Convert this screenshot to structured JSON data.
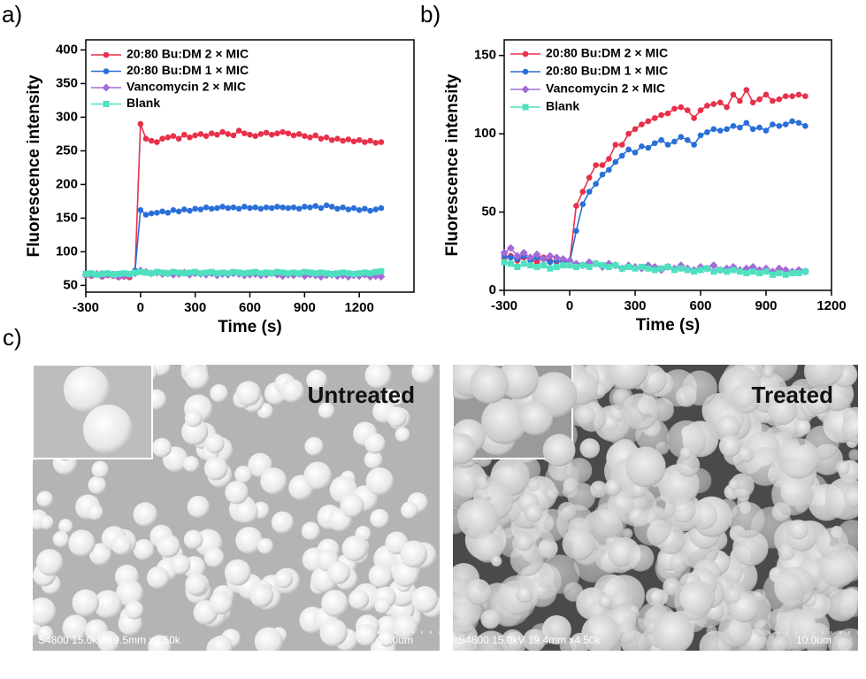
{
  "chart_data": [
    {
      "type": "line",
      "panel": "a)",
      "xlabel": "Time (s)",
      "ylabel": "Fluorescence intensity",
      "xlim": [
        -300,
        1500
      ],
      "xticks": [
        -300,
        0,
        300,
        600,
        900,
        1200
      ],
      "ylim": [
        40,
        415
      ],
      "yticks": [
        50,
        100,
        150,
        200,
        250,
        300,
        350,
        400
      ],
      "x": [
        -300,
        -270,
        -240,
        -210,
        -180,
        -150,
        -120,
        -90,
        -60,
        -30,
        0,
        30,
        60,
        90,
        120,
        150,
        180,
        210,
        240,
        270,
        300,
        330,
        360,
        390,
        420,
        450,
        480,
        510,
        540,
        570,
        600,
        630,
        660,
        690,
        720,
        750,
        780,
        810,
        840,
        870,
        900,
        930,
        960,
        990,
        1020,
        1050,
        1080,
        1110,
        1140,
        1170,
        1200,
        1230,
        1260,
        1290,
        1320
      ],
      "series": [
        {
          "name": "20:80 Bu:DM 2 × MIC",
          "color": "#e8304a",
          "marker": "circle",
          "values": [
            65,
            64,
            66,
            63,
            65,
            64,
            62,
            63,
            62,
            70,
            290,
            268,
            265,
            263,
            268,
            270,
            272,
            268,
            274,
            270,
            273,
            275,
            272,
            276,
            274,
            278,
            275,
            273,
            280,
            276,
            274,
            272,
            275,
            277,
            274,
            276,
            278,
            276,
            273,
            275,
            272,
            270,
            273,
            268,
            270,
            266,
            268,
            265,
            267,
            264,
            266,
            263,
            265,
            262,
            263
          ]
        },
        {
          "name": "20:80 Bu:DM 1 × MIC",
          "color": "#2a6fd8",
          "marker": "circle",
          "values": [
            68,
            67,
            66,
            68,
            66,
            67,
            65,
            66,
            66,
            72,
            162,
            155,
            157,
            158,
            160,
            158,
            162,
            160,
            163,
            161,
            164,
            163,
            166,
            164,
            165,
            167,
            165,
            166,
            164,
            167,
            165,
            166,
            164,
            166,
            165,
            167,
            166,
            165,
            166,
            164,
            167,
            166,
            168,
            165,
            169,
            167,
            164,
            166,
            163,
            165,
            162,
            164,
            161,
            163,
            165
          ]
        },
        {
          "name": "Vancomycin  2 × MIC",
          "color": "#a56ad8",
          "marker": "diamond",
          "values": [
            66,
            65,
            67,
            64,
            66,
            65,
            63,
            64,
            65,
            68,
            72,
            70,
            68,
            69,
            67,
            68,
            66,
            67,
            69,
            66,
            68,
            67,
            66,
            68,
            65,
            67,
            66,
            68,
            67,
            65,
            66,
            67,
            65,
            66,
            68,
            66,
            64,
            66,
            65,
            67,
            64,
            66,
            65,
            63,
            65,
            66,
            64,
            65,
            63,
            65,
            64,
            66,
            63,
            64,
            63
          ]
        },
        {
          "name": "Blank",
          "color": "#4fe0c0",
          "marker": "square",
          "values": [
            67,
            68,
            66,
            67,
            68,
            66,
            67,
            68,
            67,
            69,
            70,
            69,
            68,
            70,
            69,
            68,
            70,
            69,
            68,
            69,
            70,
            68,
            69,
            70,
            68,
            69,
            68,
            70,
            69,
            68,
            69,
            70,
            68,
            69,
            68,
            70,
            69,
            68,
            69,
            68,
            70,
            69,
            68,
            69,
            68,
            67,
            68,
            69,
            68,
            67,
            68,
            69,
            68,
            70,
            71
          ]
        }
      ]
    },
    {
      "type": "line",
      "panel": "b)",
      "xlabel": "Time (s)",
      "ylabel": "Fluorescence intensity",
      "xlim": [
        -300,
        1200
      ],
      "xticks": [
        -300,
        0,
        300,
        600,
        900,
        1200
      ],
      "ylim": [
        0,
        160
      ],
      "yticks": [
        0,
        50,
        100,
        150
      ],
      "x": [
        -300,
        -270,
        -240,
        -210,
        -180,
        -150,
        -120,
        -90,
        -60,
        -30,
        0,
        30,
        60,
        90,
        120,
        150,
        180,
        210,
        240,
        270,
        300,
        330,
        360,
        390,
        420,
        450,
        480,
        510,
        540,
        570,
        600,
        630,
        660,
        690,
        720,
        750,
        780,
        810,
        840,
        870,
        900,
        930,
        960,
        990,
        1020,
        1050,
        1080
      ],
      "series": [
        {
          "name": "20:80 Bu:DM 2 × MIC",
          "color": "#e8304a",
          "marker": "circle",
          "values": [
            20,
            22,
            19,
            21,
            20,
            18,
            21,
            19,
            18,
            19,
            18,
            54,
            63,
            72,
            80,
            80,
            84,
            93,
            93,
            100,
            103,
            106,
            108,
            110,
            112,
            113,
            116,
            117,
            115,
            110,
            115,
            118,
            119,
            120,
            117,
            125,
            121,
            128,
            120,
            122,
            125,
            121,
            122,
            124,
            124,
            125,
            124
          ]
        },
        {
          "name": "20:80 Bu:DM 1 × MIC",
          "color": "#2a6fd8",
          "marker": "circle",
          "values": [
            22,
            21,
            20,
            22,
            19,
            21,
            20,
            18,
            19,
            18,
            18,
            38,
            55,
            63,
            68,
            74,
            77,
            82,
            86,
            90,
            88,
            92,
            91,
            94,
            96,
            93,
            95,
            98,
            96,
            93,
            99,
            101,
            103,
            102,
            103,
            105,
            104,
            107,
            103,
            104,
            102,
            106,
            105,
            106,
            108,
            107,
            105
          ]
        },
        {
          "name": "Vancomycin 2 × MIC",
          "color": "#a56ad8",
          "marker": "diamond",
          "values": [
            24,
            27,
            22,
            24,
            21,
            23,
            20,
            22,
            21,
            20,
            19,
            17,
            16,
            18,
            17,
            15,
            17,
            16,
            14,
            16,
            15,
            14,
            16,
            15,
            13,
            15,
            14,
            16,
            14,
            13,
            15,
            14,
            16,
            13,
            14,
            15,
            13,
            14,
            15,
            13,
            14,
            12,
            14,
            13,
            12,
            13,
            12
          ]
        },
        {
          "name": "Blank",
          "color": "#4fe0c0",
          "marker": "square",
          "values": [
            18,
            17,
            15,
            17,
            16,
            15,
            16,
            14,
            15,
            16,
            16,
            15,
            16,
            15,
            17,
            16,
            15,
            16,
            14,
            15,
            14,
            15,
            14,
            13,
            14,
            15,
            13,
            14,
            13,
            12,
            13,
            14,
            12,
            13,
            12,
            13,
            12,
            11,
            12,
            11,
            12,
            10,
            11,
            10,
            11,
            11,
            12
          ]
        }
      ]
    }
  ],
  "images": {
    "panel": "c)",
    "items": [
      {
        "label": "Untreated",
        "info": "S4800 15.0kV 19.5mm x4.50k",
        "scale": "10.0um"
      },
      {
        "label": "Treated",
        "info": "S4800 15.0kV 19.4mm x4.50k",
        "scale": "10.0um"
      }
    ]
  }
}
